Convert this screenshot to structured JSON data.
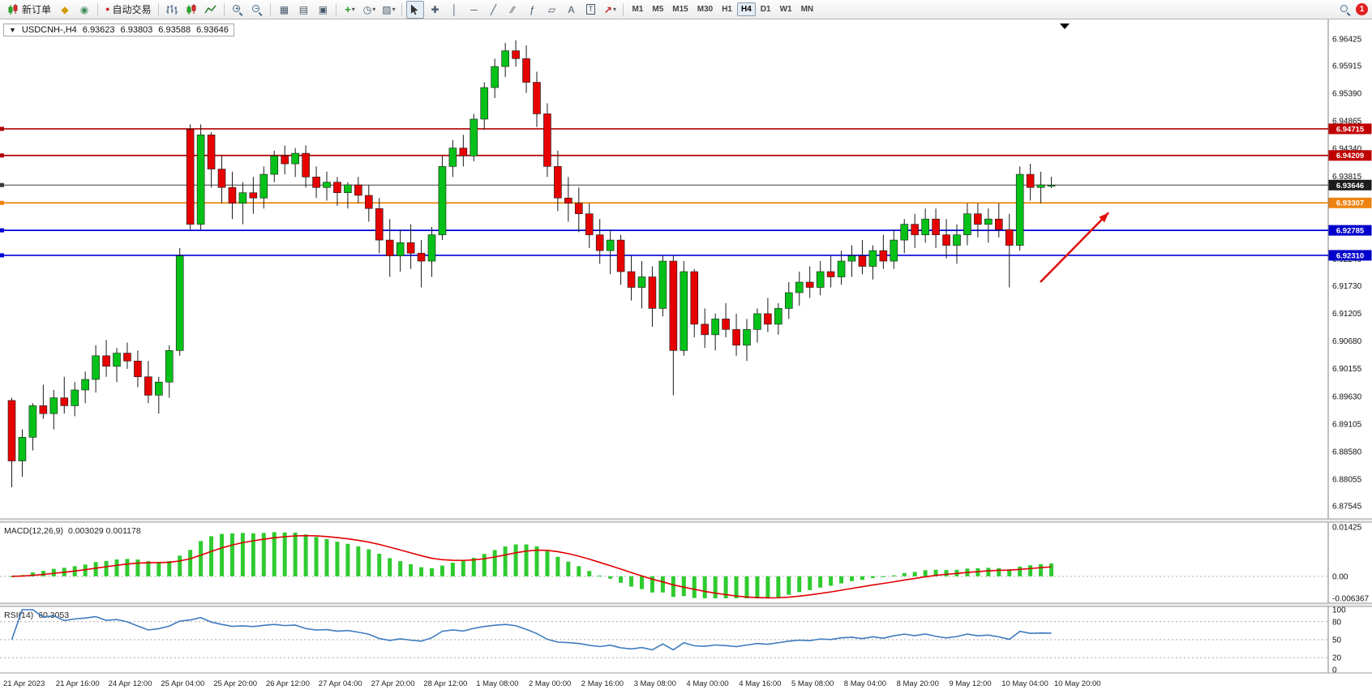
{
  "toolbar": {
    "new_order_label": "新订单",
    "autotrading_label": "自动交易",
    "timeframe_labels": [
      "M1",
      "M5",
      "M15",
      "M30",
      "H1",
      "H4",
      "D1",
      "W1",
      "MN"
    ],
    "active_timeframe": "H4",
    "notification_count": "1",
    "icons": {
      "dropdown": "▾",
      "new_chart": "◆",
      "profiles": "◉",
      "autotrading_dot": "●",
      "tile_windows": "▦",
      "chart_list": "▤",
      "data_window": "▣",
      "indicators_add": "+",
      "clock": "◷",
      "templates": "▨",
      "crosshair": "✚",
      "vline": "│",
      "hline": "─",
      "trendline": "╱",
      "channel": "∕∕",
      "fibonacci": "ƒ",
      "shapes": "▱",
      "text_tool": "A",
      "label_tool": "T",
      "arrow_tool": "↗",
      "zoom_plus": "+",
      "zoom_minus": "−"
    }
  },
  "chart": {
    "header": {
      "collapse_glyph": "▼",
      "symbol": "USDCNH-,H4",
      "open": "6.93623",
      "high": "6.93803",
      "low": "6.93588",
      "close": "6.93646"
    },
    "price_axis_labels": [
      "6.96425",
      "6.95915",
      "6.95390",
      "6.94865",
      "6.94340",
      "6.93815",
      "6.93290",
      "6.92765",
      "6.92240",
      "6.91730",
      "6.91205",
      "6.90680",
      "6.90155",
      "6.89630",
      "6.89105",
      "6.88580",
      "6.88055",
      "6.87545"
    ],
    "price_tags": [
      {
        "text": "6.94715",
        "color": "#C00000"
      },
      {
        "text": "6.94209",
        "color": "#C00000"
      },
      {
        "text": "6.93646",
        "color": "#1A1A1A"
      },
      {
        "text": "6.93307",
        "color": "#EE8210"
      },
      {
        "text": "6.92785",
        "color": "#0000CC"
      },
      {
        "text": "6.92310",
        "color": "#0000CC"
      }
    ],
    "time_axis_labels": [
      "21 Apr 2023",
      "21 Apr 16:00",
      "24 Apr 12:00",
      "25 Apr 04:00",
      "25 Apr 20:00",
      "26 Apr 12:00",
      "27 Apr 04:00",
      "27 Apr 20:00",
      "28 Apr 12:00",
      "1 May 08:00",
      "2 May 00:00",
      "2 May 16:00",
      "3 May 08:00",
      "4 May 00:00",
      "4 May 16:00",
      "5 May 08:00",
      "8 May 04:00",
      "8 May 20:00",
      "9 May 12:00",
      "10 May 04:00",
      "10 May 20:00"
    ]
  },
  "indicators": {
    "macd": {
      "label": "MACD(12,26,9)",
      "values": "0.003029 0.001178",
      "axis_labels": [
        "0.01425",
        "0.00",
        "-0.006367"
      ]
    },
    "rsi": {
      "label": "RSI(14)",
      "value": "60.3053",
      "axis_labels": [
        "100",
        "80",
        "50",
        "20",
        "0"
      ]
    }
  },
  "chart_data": {
    "type": "candlestick",
    "symbol": "USDCNH",
    "timeframe": "H4",
    "ylim": [
      6.87545,
      6.96425
    ],
    "up_color": "#05C118",
    "down_color": "#E60000",
    "current_price": 6.93646,
    "horizontal_lines": [
      {
        "price": 6.94715,
        "color": "#B00000",
        "role": "resistance"
      },
      {
        "price": 6.94209,
        "color": "#B00000",
        "role": "resistance"
      },
      {
        "price": 6.93646,
        "color": "#3A3A3A",
        "role": "current-price"
      },
      {
        "price": 6.93307,
        "color": "#EE8210",
        "role": "pivot"
      },
      {
        "price": 6.92785,
        "color": "#0000D8",
        "role": "support"
      },
      {
        "price": 6.9231,
        "color": "#0000D8",
        "role": "support"
      }
    ],
    "ohlc": [
      [
        6.8955,
        6.896,
        6.879,
        6.884
      ],
      [
        6.884,
        6.89,
        6.881,
        6.8885
      ],
      [
        6.8885,
        6.895,
        6.886,
        6.8945
      ],
      [
        6.8945,
        6.8985,
        6.892,
        6.893
      ],
      [
        6.893,
        6.8975,
        6.89,
        6.896
      ],
      [
        6.896,
        6.9,
        6.893,
        6.8945
      ],
      [
        6.8945,
        6.899,
        6.8925,
        6.8975
      ],
      [
        6.8975,
        6.901,
        6.895,
        6.8995
      ],
      [
        6.8995,
        6.906,
        6.897,
        6.904
      ],
      [
        6.904,
        6.907,
        6.9,
        6.902
      ],
      [
        6.902,
        6.9055,
        6.899,
        6.9045
      ],
      [
        6.9045,
        6.9065,
        6.9015,
        6.903
      ],
      [
        6.903,
        6.905,
        6.898,
        6.9
      ],
      [
        6.9,
        6.903,
        6.895,
        6.8965
      ],
      [
        6.8965,
        6.9,
        6.893,
        6.899
      ],
      [
        6.899,
        6.906,
        6.896,
        6.905
      ],
      [
        6.905,
        6.9245,
        6.904,
        6.923
      ],
      [
        6.947,
        6.948,
        6.928,
        6.929
      ],
      [
        6.929,
        6.948,
        6.928,
        6.946
      ],
      [
        6.946,
        6.9465,
        6.936,
        6.9395
      ],
      [
        6.9395,
        6.942,
        6.933,
        6.936
      ],
      [
        6.936,
        6.939,
        6.93,
        6.933
      ],
      [
        6.933,
        6.937,
        6.929,
        6.935
      ],
      [
        6.935,
        6.938,
        6.931,
        6.934
      ],
      [
        6.934,
        6.94,
        6.932,
        6.9385
      ],
      [
        6.9385,
        6.943,
        6.937,
        6.942
      ],
      [
        6.942,
        6.944,
        6.9385,
        6.9405
      ],
      [
        6.9405,
        6.9435,
        6.938,
        6.9425
      ],
      [
        6.9425,
        6.944,
        6.936,
        6.938
      ],
      [
        6.938,
        6.94,
        6.934,
        6.936
      ],
      [
        6.936,
        6.939,
        6.9335,
        6.937
      ],
      [
        6.937,
        6.938,
        6.9325,
        6.935
      ],
      [
        6.935,
        6.937,
        6.932,
        6.9365
      ],
      [
        6.9365,
        6.938,
        6.933,
        6.9345
      ],
      [
        6.9345,
        6.9365,
        6.9295,
        6.932
      ],
      [
        6.932,
        6.934,
        6.9235,
        6.926
      ],
      [
        6.926,
        6.93,
        6.919,
        6.923
      ],
      [
        6.923,
        6.928,
        6.92,
        6.9255
      ],
      [
        6.9255,
        6.929,
        6.9205,
        6.9235
      ],
      [
        6.9235,
        6.926,
        6.917,
        6.922
      ],
      [
        6.922,
        6.9285,
        6.919,
        6.927
      ],
      [
        6.927,
        6.942,
        6.926,
        6.94
      ],
      [
        6.94,
        6.945,
        6.938,
        6.9435
      ],
      [
        6.9435,
        6.946,
        6.94,
        6.942
      ],
      [
        6.942,
        6.95,
        6.941,
        6.949
      ],
      [
        6.949,
        6.956,
        6.947,
        6.955
      ],
      [
        6.955,
        6.9605,
        6.953,
        6.959
      ],
      [
        6.959,
        6.9635,
        6.957,
        6.962
      ],
      [
        6.962,
        6.964,
        6.959,
        6.9605
      ],
      [
        6.9605,
        6.963,
        6.954,
        6.956
      ],
      [
        6.956,
        6.958,
        6.9475,
        6.95
      ],
      [
        6.95,
        6.952,
        6.938,
        6.94
      ],
      [
        6.94,
        6.943,
        6.9315,
        6.934
      ],
      [
        6.934,
        6.938,
        6.9295,
        6.933
      ],
      [
        6.933,
        6.936,
        6.9275,
        6.931
      ],
      [
        6.931,
        6.933,
        6.9245,
        6.927
      ],
      [
        6.927,
        6.93,
        6.9215,
        6.924
      ],
      [
        6.924,
        6.928,
        6.9195,
        6.926
      ],
      [
        6.926,
        6.927,
        6.9175,
        6.92
      ],
      [
        6.92,
        6.923,
        6.9145,
        6.917
      ],
      [
        6.917,
        6.922,
        6.913,
        6.919
      ],
      [
        6.919,
        6.921,
        6.9095,
        6.913
      ],
      [
        6.913,
        6.923,
        6.9115,
        6.922
      ],
      [
        6.922,
        6.923,
        6.8965,
        6.905
      ],
      [
        6.905,
        6.922,
        6.904,
        6.92
      ],
      [
        6.92,
        6.9205,
        6.9075,
        6.91
      ],
      [
        6.91,
        6.913,
        6.9055,
        6.908
      ],
      [
        6.908,
        6.912,
        6.905,
        6.911
      ],
      [
        6.911,
        6.914,
        6.9075,
        6.909
      ],
      [
        6.909,
        6.912,
        6.904,
        6.906
      ],
      [
        6.906,
        6.911,
        6.903,
        6.909
      ],
      [
        6.909,
        6.913,
        6.9065,
        6.912
      ],
      [
        6.912,
        6.915,
        6.9085,
        6.91
      ],
      [
        6.91,
        6.914,
        6.908,
        6.913
      ],
      [
        6.913,
        6.918,
        6.911,
        6.916
      ],
      [
        6.916,
        6.92,
        6.9135,
        6.918
      ],
      [
        6.918,
        6.921,
        6.915,
        6.917
      ],
      [
        6.917,
        6.922,
        6.9155,
        6.92
      ],
      [
        6.92,
        6.923,
        6.917,
        6.919
      ],
      [
        6.919,
        6.924,
        6.9175,
        6.922
      ],
      [
        6.922,
        6.925,
        6.919,
        6.923
      ],
      [
        6.923,
        6.926,
        6.9195,
        6.921
      ],
      [
        6.921,
        6.925,
        6.9185,
        6.924
      ],
      [
        6.924,
        6.927,
        6.9205,
        6.922
      ],
      [
        6.922,
        6.928,
        6.9205,
        6.926
      ],
      [
        6.926,
        6.93,
        6.9235,
        6.929
      ],
      [
        6.929,
        6.931,
        6.9245,
        6.927
      ],
      [
        6.927,
        6.932,
        6.9255,
        6.93
      ],
      [
        6.93,
        6.932,
        6.9245,
        6.927
      ],
      [
        6.927,
        6.93,
        6.9225,
        6.925
      ],
      [
        6.925,
        6.929,
        6.9215,
        6.927
      ],
      [
        6.927,
        6.933,
        6.925,
        6.931
      ],
      [
        6.931,
        6.933,
        6.9265,
        6.929
      ],
      [
        6.929,
        6.932,
        6.9255,
        6.93
      ],
      [
        6.93,
        6.933,
        6.9265,
        6.928
      ],
      [
        6.928,
        6.931,
        6.917,
        6.925
      ],
      [
        6.925,
        6.94,
        6.924,
        6.9385
      ],
      [
        6.9385,
        6.9405,
        6.9335,
        6.936
      ],
      [
        6.936,
        6.939,
        6.933,
        6.9365
      ],
      [
        6.93623,
        6.93803,
        6.93588,
        6.93646
      ]
    ],
    "macd": {
      "fast": 12,
      "slow": 26,
      "signal": 9,
      "hist_color": "#2FCB2F",
      "signal_color": "#E00000",
      "ylim": [
        -0.006367,
        0.01425
      ]
    },
    "rsi": {
      "period": 14,
      "color": "#3E7BBF",
      "levels": [
        80,
        50,
        20
      ],
      "ylim": [
        0,
        100
      ]
    },
    "annotation_arrow": {
      "x1_index": 98.3,
      "price1": 6.918,
      "x2_index": 104.8,
      "price2": 6.9312,
      "color": "#E01010"
    }
  }
}
